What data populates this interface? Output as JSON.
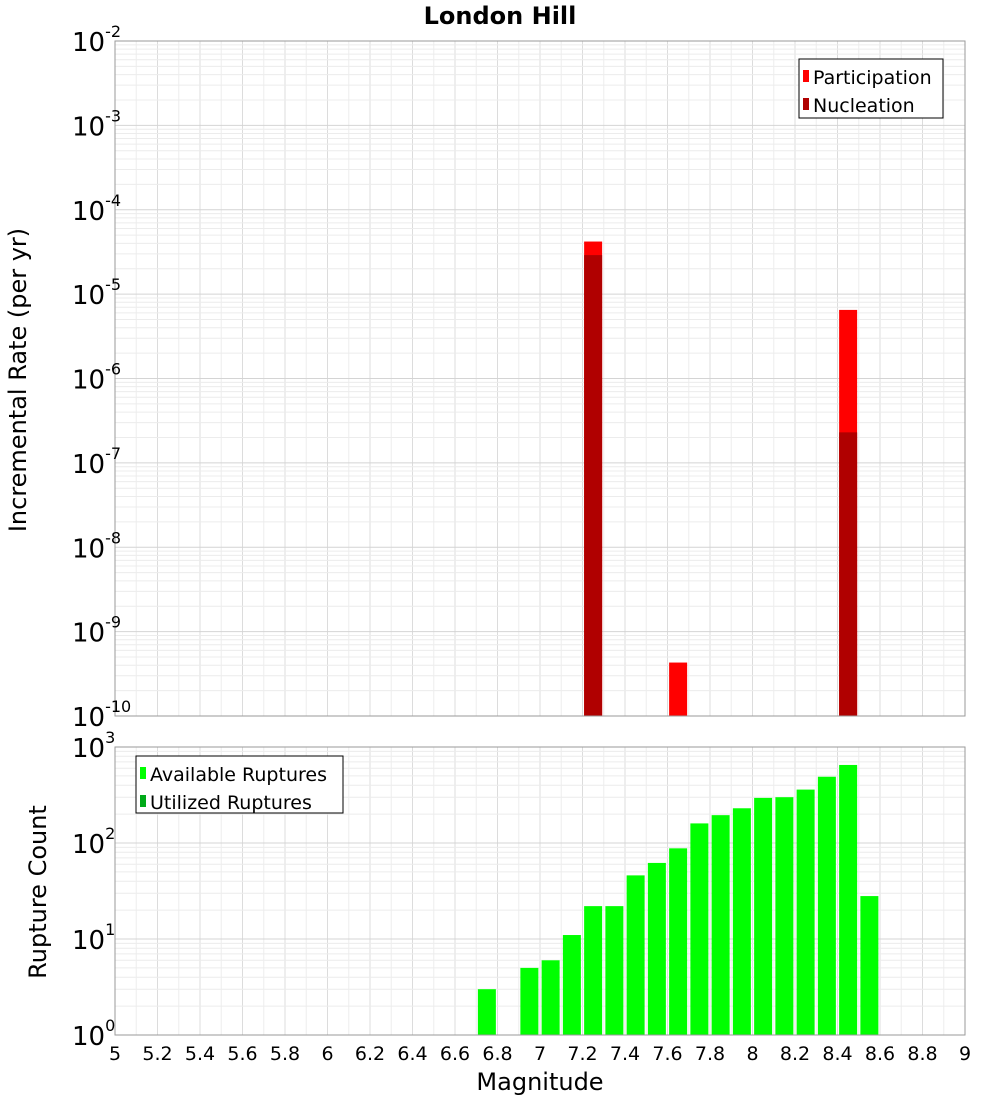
{
  "title": "London Hill",
  "colors": {
    "participation": "#ff0000",
    "nucleation": "#b00000",
    "available": "#00ff00",
    "utilized": "#00aa18"
  },
  "chart_data": [
    {
      "type": "bar",
      "title": "London Hill",
      "xlabel": "",
      "ylabel": "Incremental Rate (per yr)",
      "y_scale": "log",
      "xlim": [
        5,
        9
      ],
      "ylim": [
        1e-10,
        0.01
      ],
      "grid": true,
      "legend_position": "top-right",
      "series": [
        {
          "name": "Participation",
          "color": "#ff0000",
          "x": [
            7.25,
            7.65,
            8.45
          ],
          "values": [
            4.2e-05,
            4.3e-10,
            6.5e-06
          ]
        },
        {
          "name": "Nucleation",
          "color": "#b00000",
          "x": [
            7.25,
            8.45
          ],
          "values": [
            2.9e-05,
            2.3e-07
          ]
        }
      ]
    },
    {
      "type": "bar",
      "xlabel": "Magnitude",
      "ylabel": "Rupture Count",
      "y_scale": "log",
      "xlim": [
        5,
        9
      ],
      "ylim": [
        1,
        1000
      ],
      "grid": true,
      "legend_position": "top-left",
      "series": [
        {
          "name": "Available Ruptures",
          "color": "#00ff00",
          "x": [
            6.75,
            6.95,
            7.05,
            7.15,
            7.25,
            7.35,
            7.45,
            7.55,
            7.65,
            7.75,
            7.85,
            7.95,
            8.05,
            8.15,
            8.25,
            8.35,
            8.45,
            8.55
          ],
          "values": [
            3,
            5,
            6,
            11,
            22,
            22,
            46,
            62,
            88,
            160,
            195,
            230,
            295,
            300,
            360,
            490,
            650,
            28
          ]
        },
        {
          "name": "Utilized Ruptures",
          "color": "#00aa18",
          "x": [
            7.25,
            7.65,
            8.45
          ],
          "values": [
            1,
            1,
            1
          ]
        }
      ]
    }
  ],
  "x_ticks": [
    "5",
    "5.2",
    "5.4",
    "5.6",
    "5.8",
    "6",
    "6.2",
    "6.4",
    "6.6",
    "6.8",
    "7",
    "7.2",
    "7.4",
    "7.6",
    "7.8",
    "8",
    "8.2",
    "8.4",
    "8.6",
    "8.8",
    "9"
  ],
  "top_y_exponents": [
    "-2",
    "-3",
    "-4",
    "-5",
    "-6",
    "-7",
    "-8",
    "-9",
    "-10"
  ],
  "bottom_y_exponents": [
    "3",
    "2",
    "1",
    "0"
  ]
}
